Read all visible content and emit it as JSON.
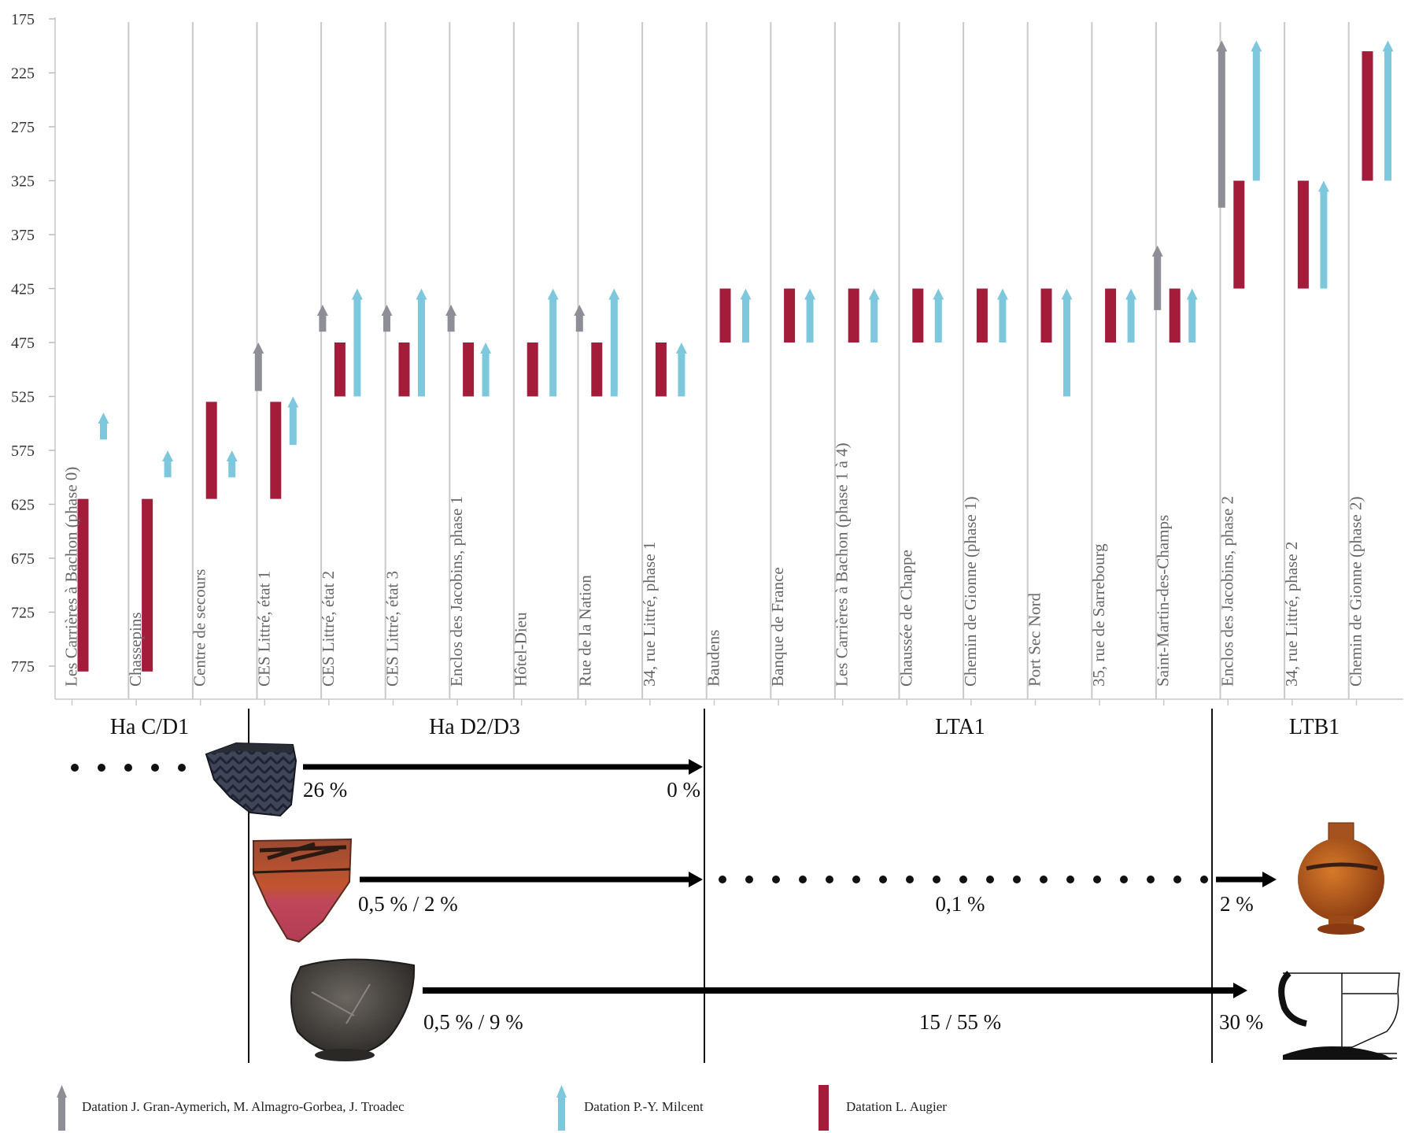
{
  "chart_data": {
    "type": "range-bar",
    "y_axis": {
      "ticks": [
        "175",
        "225",
        "275",
        "325",
        "375",
        "425",
        "475",
        "525",
        "575",
        "625",
        "675",
        "725",
        "775"
      ],
      "ylim": [
        175,
        790
      ],
      "inverted": true
    },
    "legend": [
      {
        "name": "Datation J. Gran-Aymerich,  M. Almagro-Gorbea, J. Troadec",
        "color": "#8e8f96",
        "shape": "arrow"
      },
      {
        "name": "Datation P.-Y. Milcent",
        "color": "#7ec8de",
        "shape": "arrow"
      },
      {
        "name": "Datation L. Augier",
        "color": "#a31d3a",
        "shape": "bar"
      }
    ],
    "sites": [
      {
        "label": "Les Carrières à Bachon (phase 0)",
        "ranges": [
          {
            "series": "milcent",
            "from": 565,
            "to": 540
          },
          {
            "series": "augier",
            "from": 780,
            "to": 620
          }
        ]
      },
      {
        "label": "Chassepins",
        "ranges": [
          {
            "series": "milcent",
            "from": 600,
            "to": 575
          },
          {
            "series": "augier",
            "from": 780,
            "to": 620
          }
        ]
      },
      {
        "label": "Centre de secours",
        "ranges": [
          {
            "series": "milcent",
            "from": 600,
            "to": 575
          },
          {
            "series": "augier",
            "from": 620,
            "to": 530
          }
        ]
      },
      {
        "label": "CES Littré, état 1",
        "ranges": [
          {
            "series": "gran",
            "from": 520,
            "to": 475
          },
          {
            "series": "milcent",
            "from": 570,
            "to": 525
          },
          {
            "series": "augier",
            "from": 620,
            "to": 530
          }
        ]
      },
      {
        "label": "CES Littré, état 2",
        "ranges": [
          {
            "series": "gran",
            "from": 465,
            "to": 440
          },
          {
            "series": "milcent",
            "from": 525,
            "to": 425
          },
          {
            "series": "augier",
            "from": 525,
            "to": 475
          }
        ]
      },
      {
        "label": "CES Littré, état 3",
        "ranges": [
          {
            "series": "gran",
            "from": 465,
            "to": 440
          },
          {
            "series": "milcent",
            "from": 525,
            "to": 425
          },
          {
            "series": "augier",
            "from": 525,
            "to": 475
          }
        ]
      },
      {
        "label": "Enclos des Jacobins, phase 1",
        "ranges": [
          {
            "series": "gran",
            "from": 465,
            "to": 440
          },
          {
            "series": "milcent",
            "from": 525,
            "to": 475
          },
          {
            "series": "augier",
            "from": 525,
            "to": 475
          }
        ]
      },
      {
        "label": "Hôtel-Dieu",
        "ranges": [
          {
            "series": "milcent",
            "from": 525,
            "to": 425
          },
          {
            "series": "augier",
            "from": 525,
            "to": 475
          }
        ]
      },
      {
        "label": "Rue de la Nation",
        "ranges": [
          {
            "series": "gran",
            "from": 465,
            "to": 440
          },
          {
            "series": "milcent",
            "from": 525,
            "to": 425
          },
          {
            "series": "augier",
            "from": 525,
            "to": 475
          }
        ]
      },
      {
        "label": "34, rue Littré, phase 1",
        "ranges": [
          {
            "series": "milcent",
            "from": 525,
            "to": 475
          },
          {
            "series": "augier",
            "from": 525,
            "to": 475
          }
        ]
      },
      {
        "label": "Baudens",
        "ranges": [
          {
            "series": "milcent",
            "from": 475,
            "to": 425
          },
          {
            "series": "augier",
            "from": 475,
            "to": 425
          }
        ]
      },
      {
        "label": "Banque de France",
        "ranges": [
          {
            "series": "milcent",
            "from": 475,
            "to": 425
          },
          {
            "series": "augier",
            "from": 475,
            "to": 425
          }
        ]
      },
      {
        "label": "Les Carrières à Bachon (phase 1 à 4)",
        "ranges": [
          {
            "series": "milcent",
            "from": 475,
            "to": 425
          },
          {
            "series": "augier",
            "from": 475,
            "to": 425
          }
        ]
      },
      {
        "label": "Chaussée de Chappe",
        "ranges": [
          {
            "series": "milcent",
            "from": 475,
            "to": 425
          },
          {
            "series": "augier",
            "from": 475,
            "to": 425
          }
        ]
      },
      {
        "label": "Chemin de Gionne (phase 1)",
        "ranges": [
          {
            "series": "milcent",
            "from": 475,
            "to": 425
          },
          {
            "series": "augier",
            "from": 475,
            "to": 425
          }
        ]
      },
      {
        "label": "Port Sec Nord",
        "ranges": [
          {
            "series": "milcent",
            "from": 525,
            "to": 425
          },
          {
            "series": "augier",
            "from": 475,
            "to": 425
          }
        ]
      },
      {
        "label": "35, rue de Sarrebourg",
        "ranges": [
          {
            "series": "milcent",
            "from": 475,
            "to": 425
          },
          {
            "series": "augier",
            "from": 475,
            "to": 425
          }
        ]
      },
      {
        "label": "Saint-Martin-des-Champs",
        "ranges": [
          {
            "series": "gran",
            "from": 445,
            "to": 385
          },
          {
            "series": "milcent",
            "from": 475,
            "to": 425
          },
          {
            "series": "augier",
            "from": 475,
            "to": 425
          }
        ]
      },
      {
        "label": "Enclos des Jacobins, phase 2",
        "ranges": [
          {
            "series": "gran",
            "from": 350,
            "to": 195
          },
          {
            "series": "milcent",
            "from": 325,
            "to": 195
          },
          {
            "series": "augier",
            "from": 425,
            "to": 325
          }
        ]
      },
      {
        "label": "34, rue Littré, phase 2",
        "ranges": [
          {
            "series": "milcent",
            "from": 425,
            "to": 325
          },
          {
            "series": "augier",
            "from": 425,
            "to": 325
          }
        ]
      },
      {
        "label": "Chemin de Gionne (phase 2)",
        "ranges": [
          {
            "series": "milcent",
            "from": 325,
            "to": 195
          },
          {
            "series": "augier",
            "from": 325,
            "to": 205
          }
        ]
      }
    ],
    "periods": [
      "Ha C/D1",
      "Ha D2/D3",
      "LTA1",
      "LTB1"
    ],
    "transitions": [
      {
        "labels": [
          "26 %",
          "0 %"
        ]
      },
      {
        "labels": [
          "0,5 % / 2 %",
          "0,1 %",
          "2 %"
        ]
      },
      {
        "labels": [
          "0,5 % / 9 %",
          "15 / 55 %",
          "30 %"
        ]
      }
    ],
    "colors": {
      "gran": "#8e8f96",
      "milcent": "#7ec8de",
      "augier": "#a31d3a",
      "grid": "#c9c9c9"
    }
  }
}
